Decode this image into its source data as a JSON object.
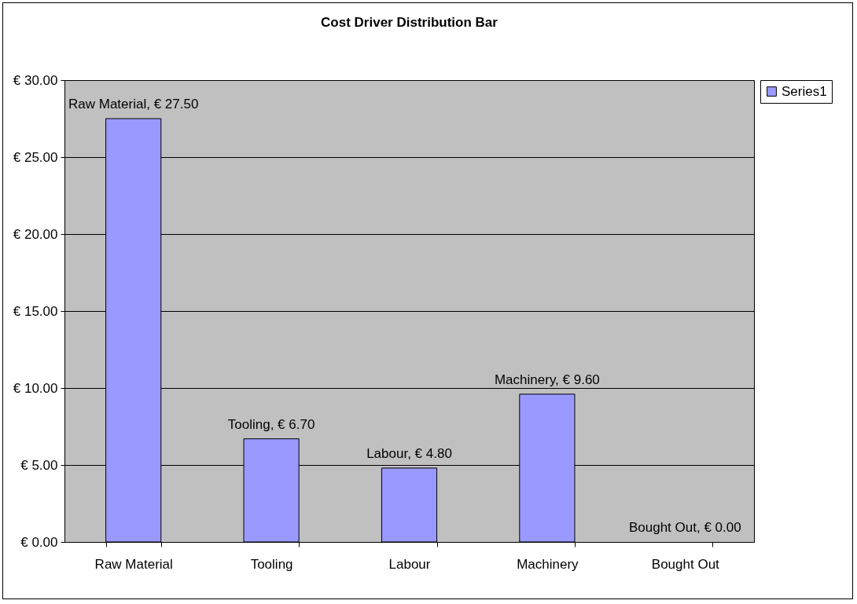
{
  "chart_data": {
    "type": "bar",
    "title": "Cost Driver Distribution Bar",
    "categories": [
      "Raw Material",
      "Tooling",
      "Labour",
      "Machinery",
      "Bought Out"
    ],
    "series": [
      {
        "name": "Series1",
        "color": "#9999ff",
        "values": [
          27.5,
          6.7,
          4.8,
          9.6,
          0
        ],
        "value_labels": [
          "Raw Material, € 27.50",
          "Tooling, € 6.70",
          "Labour, € 4.80",
          "Machinery, € 9.60",
          "Bought Out, € 0.00"
        ]
      }
    ],
    "ylim": [
      0,
      30
    ],
    "yticks": [
      {
        "value": 0,
        "label": "€ 0.00"
      },
      {
        "value": 5,
        "label": "€ 5.00"
      },
      {
        "value": 10,
        "label": "€ 10.00"
      },
      {
        "value": 15,
        "label": "€ 15.00"
      },
      {
        "value": 20,
        "label": "€ 20.00"
      },
      {
        "value": 25,
        "label": "€ 25.00"
      },
      {
        "value": 30,
        "label": "€ 30.00"
      }
    ],
    "grid": "y",
    "legend": "right"
  }
}
